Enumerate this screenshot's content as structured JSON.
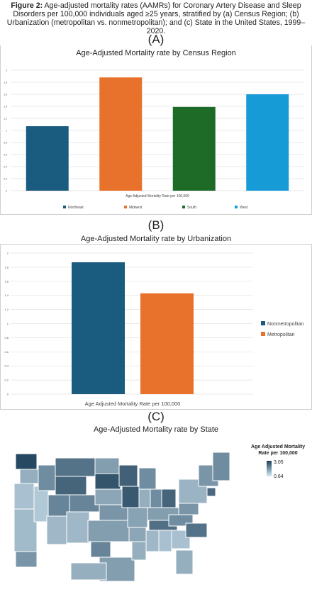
{
  "figure": {
    "label": "Figure 2:",
    "caption": "Age-adjusted mortality rates (AAMRs) for Coronary Artery Disease and Sleep Disorders per 100,000 individuals aged ≥25 years, stratified by (a) Census Region; (b) Urbanization (metropolitan vs. nonmetropolitan); and (c) State in the United States, 1999–2020."
  },
  "panels": {
    "a_letter": "(A)",
    "b_letter": "(B)",
    "c_letter": "(C)"
  },
  "chart_data": [
    {
      "id": "region",
      "type": "bar",
      "title": "Age-Adjusted Mortality rate by Census Region",
      "xlabel": "Age Adjusted Mortality Rate per 100,000",
      "ylabel": "",
      "ylim": [
        0,
        2
      ],
      "yticks": [
        "0",
        "0.2",
        "0.4",
        "0.6",
        "0.8",
        "1",
        "1.2",
        "1.4",
        "1.6",
        "1.8",
        "2"
      ],
      "grid": true,
      "legend": "bottom",
      "series": [
        {
          "name": "Northeast",
          "value": 1.07,
          "color": "#1a5b80"
        },
        {
          "name": "Midwest",
          "value": 1.88,
          "color": "#e8722c"
        },
        {
          "name": "South",
          "value": 1.39,
          "color": "#1e6b28"
        },
        {
          "name": "West",
          "value": 1.6,
          "color": "#179bd7"
        }
      ]
    },
    {
      "id": "urbanization",
      "type": "bar",
      "title": "Age-Adjusted Mortality rate by Urbanization",
      "xlabel": "Age Adjusted Mortality Rate per 100,000",
      "ylabel": "",
      "ylim": [
        0,
        2
      ],
      "yticks": [
        "0",
        "0.2",
        "0.4",
        "0.6",
        "0.8",
        "1",
        "1.2",
        "1.4",
        "1.6",
        "1.8",
        "2"
      ],
      "grid": true,
      "legend": "right",
      "series": [
        {
          "name": "Nonmetropolitan",
          "value": 1.87,
          "color": "#1a5b80"
        },
        {
          "name": "Metropolitan",
          "value": 1.43,
          "color": "#e8722c"
        }
      ]
    },
    {
      "id": "state",
      "type": "heatmap",
      "title": "Age-Adjusted Mortality rate by State",
      "legend_title": "Age Adjusted Mortality Rate per 100,000",
      "scale_max": "3.05",
      "scale_min": "0.64",
      "color_low": "#d6ebf7",
      "color_high": "#1d3f58"
    }
  ]
}
